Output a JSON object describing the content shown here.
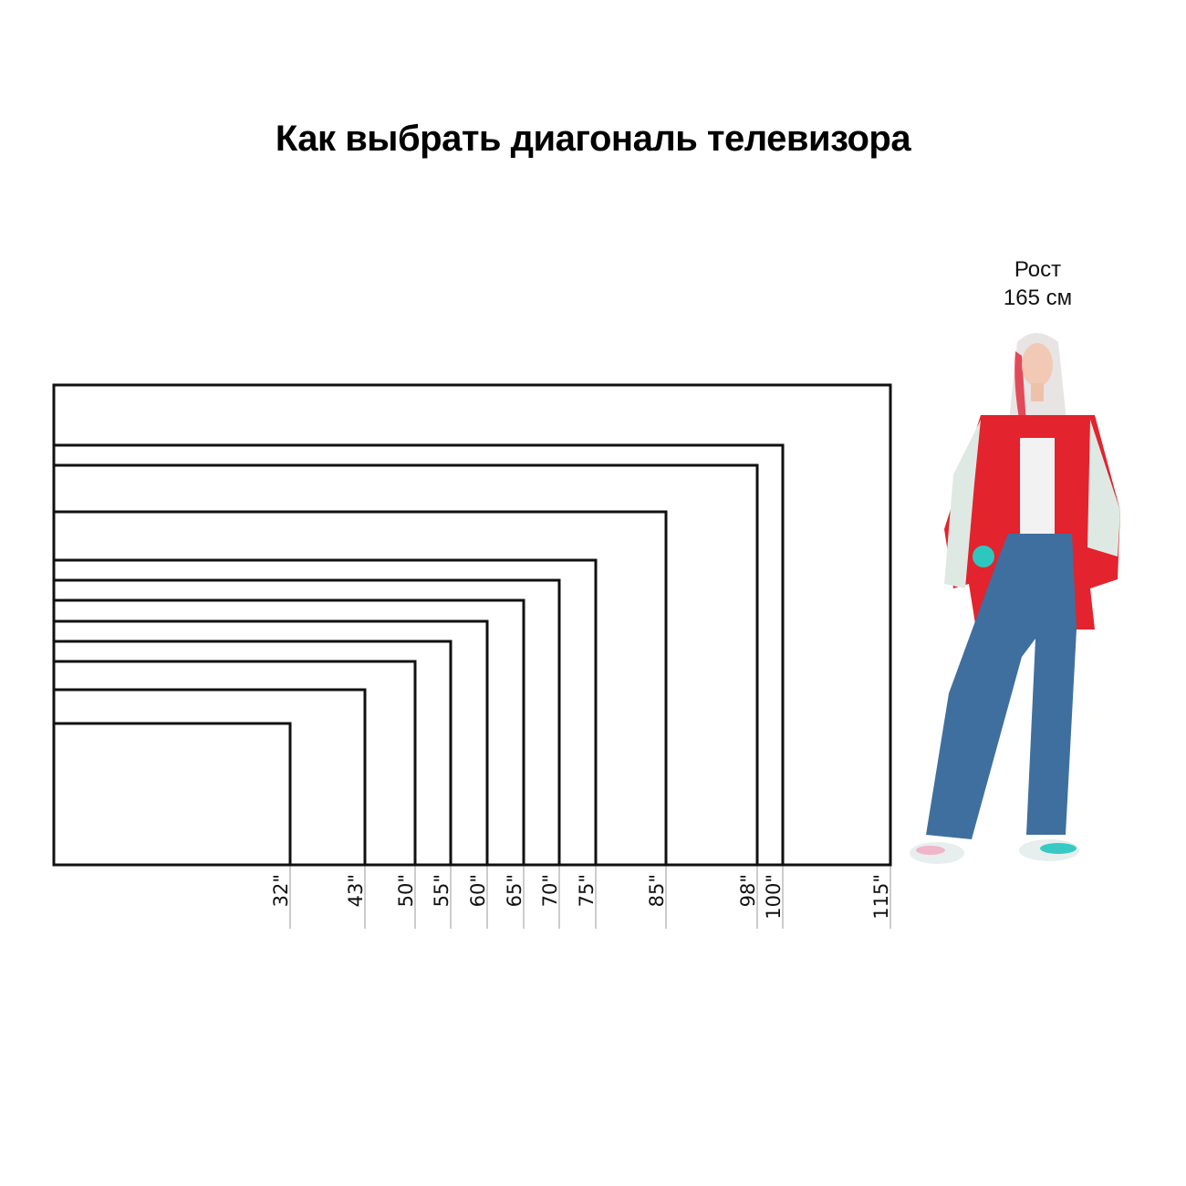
{
  "title": "Как выбрать диагональ телевизора",
  "person": {
    "label_line1": "Рост",
    "label_line2": "165 см",
    "height_cm": 165
  },
  "chart_data": {
    "type": "diagram",
    "aspect_ratio": "16:9",
    "unit": "inch",
    "diagonals": [
      32,
      43,
      50,
      55,
      60,
      65,
      70,
      75,
      85,
      98,
      100,
      115
    ],
    "labels": [
      "32\"",
      "43\"",
      "50\"",
      "55\"",
      "60\"",
      "65\"",
      "70\"",
      "75\"",
      "85\"",
      "98\"",
      "100\"",
      "115\""
    ]
  },
  "colors": {
    "outline": "#111111",
    "tick": "#aaaaaa",
    "jacket": "#e3232e",
    "jeans": "#3f6f9e"
  }
}
